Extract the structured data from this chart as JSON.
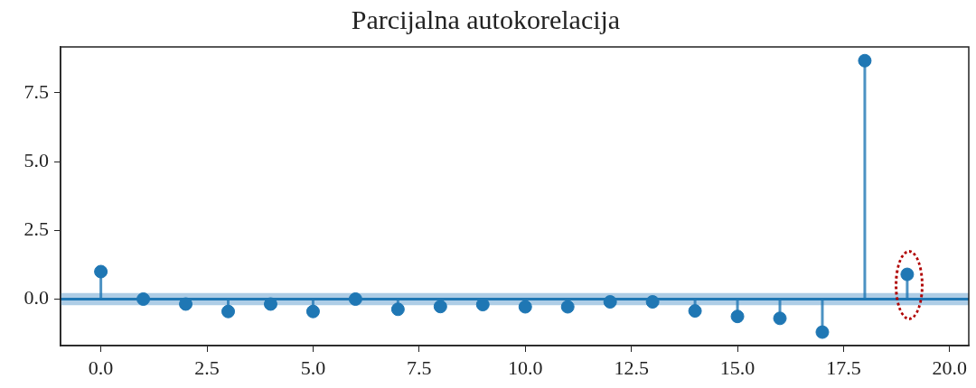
{
  "chart_data": {
    "type": "lollipop",
    "title": "Parcijalna autokorelacija",
    "x": [
      0,
      1,
      2,
      3,
      4,
      5,
      6,
      7,
      8,
      9,
      10,
      11,
      12,
      13,
      14,
      15,
      16,
      17,
      18,
      19
    ],
    "series": [
      {
        "color": "#1f77b4",
        "values": [
          1.0,
          0.0,
          -0.18,
          -0.45,
          -0.18,
          -0.45,
          0.0,
          -0.37,
          -0.27,
          -0.2,
          -0.28,
          -0.28,
          -0.1,
          -0.1,
          -0.43,
          -0.63,
          -0.7,
          -1.2,
          8.67,
          0.9
        ]
      }
    ],
    "xlim": [
      -0.95,
      20.45
    ],
    "ylim": [
      -1.69,
      9.17
    ],
    "xticks": [
      {
        "value": 0,
        "label": "0.0"
      },
      {
        "value": 2.5,
        "label": "2.5"
      },
      {
        "value": 5,
        "label": "5.0"
      },
      {
        "value": 7.5,
        "label": "7.5"
      },
      {
        "value": 10,
        "label": "10.0"
      },
      {
        "value": 12.5,
        "label": "12.5"
      },
      {
        "value": 15,
        "label": "15.0"
      },
      {
        "value": 17.5,
        "label": "17.5"
      },
      {
        "value": 20,
        "label": "20.0"
      }
    ],
    "yticks": [
      {
        "value": 0,
        "label": "0.0"
      },
      {
        "value": 2.5,
        "label": "2.5"
      },
      {
        "value": 5,
        "label": "5.0"
      },
      {
        "value": 7.5,
        "label": "7.5"
      }
    ],
    "ref_lines": [
      {
        "axis": "y",
        "value": 0,
        "color": "#1f77b4"
      }
    ],
    "bands": [
      {
        "axis": "y",
        "from": -0.22,
        "to": 0.22,
        "color": "#aecde6"
      }
    ],
    "grid": false,
    "legend": false,
    "marker": "circle"
  }
}
